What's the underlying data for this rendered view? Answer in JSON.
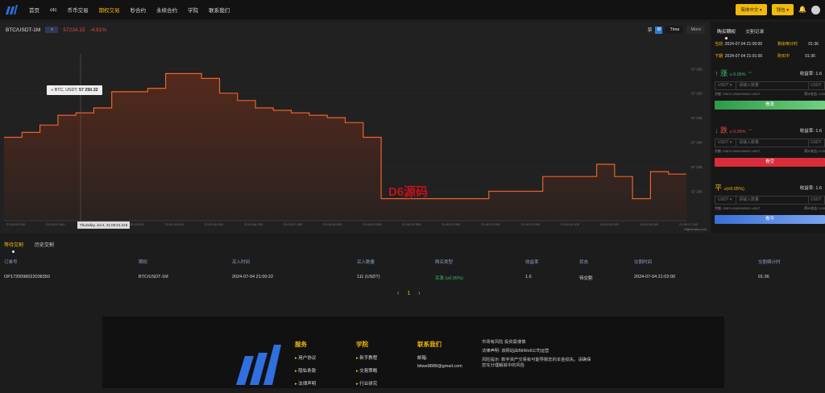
{
  "nav": {
    "items": [
      "首页",
      "otc",
      "币币交易",
      "期权交易",
      "秒合约",
      "永续合约",
      "学院",
      "联系我们"
    ],
    "active_index": 3,
    "language_label": "简体中文",
    "wallet_label": "钱包"
  },
  "chart_header": {
    "pair": "BTC/USDT-1M",
    "price": "57234.15",
    "change": "-4.91%",
    "tool_label": "禁",
    "time_btn": "Time",
    "more_btn": "More"
  },
  "tooltip": {
    "series": "BTC, USDT:",
    "value": "57 250.32"
  },
  "x_cursor": "Thursday, Jul 4, 21:00:01.218",
  "watermark": "D6源码",
  "credit": "Highcharts.com",
  "chart_data": {
    "type": "area",
    "series": [
      {
        "values": [
          57241.0,
          57242.0,
          57243.5,
          57245.5,
          57246.0,
          57247.0,
          57250.3,
          57250.3,
          57251.0,
          57254.0,
          57254.0,
          57253.0,
          57250.0,
          57248.5,
          57247.0,
          57246.5,
          57246.0,
          57245.5,
          57245.0,
          57244.0,
          57241.0,
          57228.5,
          57228.5,
          57228.5,
          57228.5,
          57228.5,
          57228.5,
          57230.0,
          57230.0,
          57230.0,
          57233.0,
          57233.0,
          57233.0,
          57235.5,
          57233.0,
          57228.5,
          57234.0,
          57233.5
        ]
      }
    ],
    "y_ticks": [
      "57 255",
      "57 250",
      "57 245",
      "57 240",
      "57 235",
      "57 230"
    ],
    "x_ticks": [
      "21:00:00.000",
      "21:00:01.000",
      "21:00:02.000",
      "21:00:03.000",
      "21:00:04.000",
      "21:00:05.000",
      "21:00:06.000",
      "21:00:07.000",
      "21:00:08.000",
      "21:00:09.000",
      "21:00:10.000",
      "21:00:11.000",
      "21:00:12.000",
      "21:00:13.000",
      "21:00:14.000",
      "21:00:15.000",
      "21:00:16.000",
      "21:00:17.000"
    ],
    "ylim": [
      57224,
      57258
    ],
    "colors": {
      "line": "#e8622c",
      "fill": "#5a2a1c"
    }
  },
  "side": {
    "tabs": [
      "购买期权",
      "交割记录"
    ],
    "info": [
      {
        "k": "当前:",
        "v": "2024-07-04 21:00:00",
        "k2": "剩余倒计时",
        "v2": "01:36"
      },
      {
        "k": "下期:",
        "v": "2024-07-04 21:01:00",
        "k2": "购买中",
        "v2": "01:36"
      }
    ],
    "blocks": [
      {
        "dir": "↑ 涨",
        "cond": "≥ 0.05%",
        "rate": "收益率: 1.6",
        "currency": "USDT ▾",
        "placeholder": "请输入数量",
        "unit": "USDT",
        "bal": "余额: 93670.0000000000 USDT",
        "exp": "预计收益: 0.00",
        "btn": "看涨",
        "color": "#3fbf6b",
        "btncolor": "#3fae57"
      },
      {
        "dir": "↓ 跌",
        "cond": "≤ 0.05%",
        "rate": "收益率: 1.6",
        "currency": "USDT ▾",
        "placeholder": "请输入数量",
        "unit": "USDT",
        "bal": "余额: 93670.0000000000 USDT",
        "exp": "预计收益: 0.00",
        "btn": "看空",
        "color": "#e04848",
        "btncolor": "#d92d3a"
      },
      {
        "dir": "平",
        "cond": "≥(±0.05%)",
        "rate": "收益率: 1.6",
        "currency": "USDT ▾",
        "placeholder": "请输入数量",
        "unit": "USDT",
        "bal": "余额: 93670.0000000000 USDT",
        "exp": "预计收益: 0.00",
        "btn": "看平",
        "color": "#f0b90b",
        "btncolor": "#4a7fe0"
      }
    ]
  },
  "orders": {
    "tabs": [
      "等待交割",
      "历史交割"
    ],
    "headers": [
      "订单号",
      "期权",
      "买入时间",
      "买入数量",
      "购买类型",
      "收益率",
      "状态",
      "交割时间",
      "交割倒计时"
    ],
    "rows": [
      [
        "OP1720098022038350",
        "BTC/USDT-1M",
        "2024-07-04 21:00:22",
        "111 (USDT)",
        "买涨 (≥0.05%)",
        "1.6",
        "待交割",
        "2024-07-04 21:02:00",
        "01:36"
      ]
    ],
    "pager": {
      "prev": "‹",
      "page": "1",
      "next": "›"
    }
  },
  "footer": {
    "cols": [
      {
        "h": "服务",
        "items": [
          "用户协议",
          "隐私条款",
          "法律声明"
        ]
      },
      {
        "h": "学院",
        "items": [
          "新手教程",
          "交易策略",
          "行业研究"
        ]
      }
    ],
    "contact": {
      "h": "联系我们",
      "label": "邮箱:",
      "email": "bitwe8888@gmail.com"
    },
    "notes": [
      "市场有风险 投资需谨慎",
      "法律声明: 该网站由BitWe8公司运营",
      "风险提示: 数字资产交易有可能导致您的本金损失。请确保您充分理解其中的风险"
    ]
  }
}
